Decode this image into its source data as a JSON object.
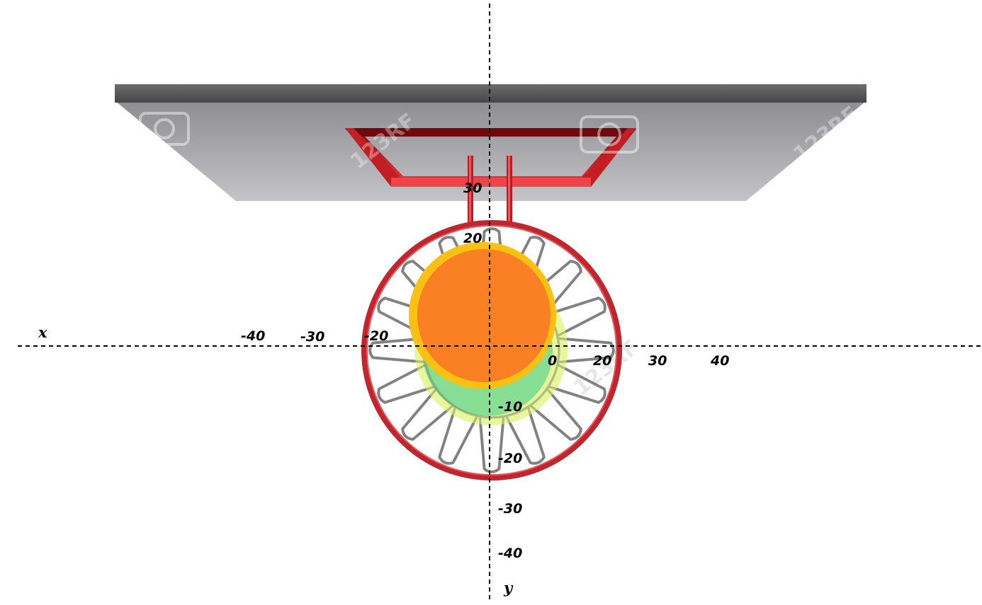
{
  "axes": {
    "x_name": "x",
    "y_name": "y",
    "x_ticks": [
      "-40",
      "-30",
      "-20",
      "20",
      "30",
      "40"
    ],
    "x_tick_partial": "0",
    "y_ticks": [
      "30",
      "20",
      "-10",
      "-20",
      "-30",
      "-40"
    ]
  },
  "watermark": {
    "text": "123RF"
  },
  "colors": {
    "backboard_top": "#58585a",
    "backboard_face": "#9a9a9e",
    "target_box": "#b8141a",
    "rim": "#c0262d",
    "net": "#8e8e8e",
    "ball_fill": "#fb8023",
    "ball_outline": "#fbc014",
    "inner_zone": "#5cd48f",
    "outer_zone": "#e3f78a"
  }
}
